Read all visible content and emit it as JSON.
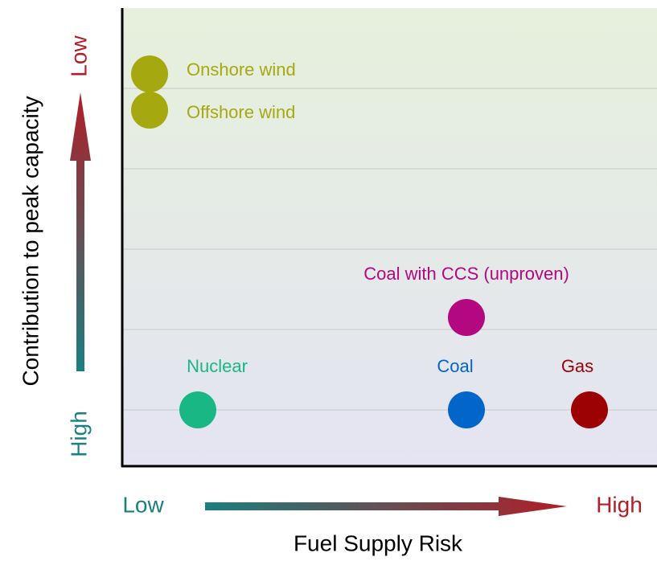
{
  "chart_data": {
    "type": "scatter",
    "x_label": "Fuel Supply Risk",
    "y_label": "Contribution to peak capacity",
    "x_low_label": "Low",
    "x_high_label": "High",
    "y_low_label": "Low",
    "y_high_label": "High",
    "xlim": [
      0,
      6.65
    ],
    "ylim": [
      -0.7,
      5.0
    ],
    "yticks": [
      0,
      1,
      2,
      3,
      4
    ],
    "grid": true,
    "points": [
      {
        "label": "Onshore wind",
        "x": 0.34,
        "y": 4.18,
        "color": "#a5a90f"
      },
      {
        "label": "Offshore wind",
        "x": 0.34,
        "y": 3.73,
        "color": "#a5a90f"
      },
      {
        "label": "Coal with CCS (unproven)",
        "x": 4.28,
        "y": 1.15,
        "color": "#b3087f"
      },
      {
        "label": "Nuclear",
        "x": 0.94,
        "y": 0,
        "color": "#19b784"
      },
      {
        "label": "Coal",
        "x": 4.28,
        "y": 0,
        "color": "#0066c9"
      },
      {
        "label": "Gas",
        "x": 5.81,
        "y": 0,
        "color": "#9c0204"
      }
    ]
  }
}
